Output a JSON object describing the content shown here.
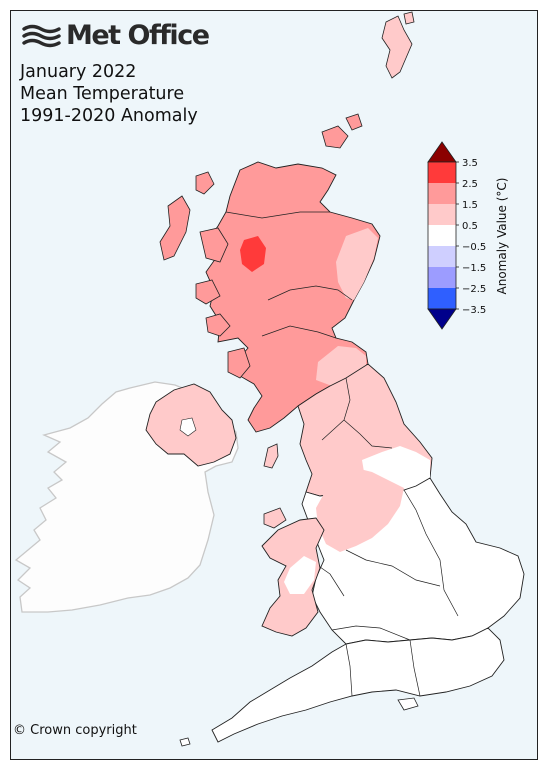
{
  "brand": {
    "name": "Met Office",
    "logo_icon": "met-office-wave-logo"
  },
  "title": [
    "January 2022",
    "Mean Temperature",
    "1991-2020 Anomaly"
  ],
  "copyright": "© Crown copyright",
  "legend": {
    "label": "Anomaly Value (°C)",
    "ticks": [
      "3.5",
      "2.5",
      "1.5",
      "0.5",
      "−0.5",
      "−1.5",
      "−2.5",
      "−3.5"
    ],
    "bins": [
      {
        "range": ">3.5",
        "color": "#8b0000"
      },
      {
        "range": "2.5 to 3.5",
        "color": "#ff3a3a"
      },
      {
        "range": "1.5 to 2.5",
        "color": "#ff9a9a"
      },
      {
        "range": "0.5 to 1.5",
        "color": "#ffcaca"
      },
      {
        "range": "-0.5 to 0.5",
        "color": "#ffffff"
      },
      {
        "range": "-1.5 to -0.5",
        "color": "#cfcfff"
      },
      {
        "range": "-2.5 to -1.5",
        "color": "#9c9cff"
      },
      {
        "range": "-3.5 to -2.5",
        "color": "#2f5fff"
      },
      {
        "range": "<-3.5",
        "color": "#00008b"
      }
    ]
  },
  "colors": {
    "sea": "#eef6fa",
    "ireland_land": "#fdfdfd",
    "ireland_border": "#c8c8c8"
  }
}
